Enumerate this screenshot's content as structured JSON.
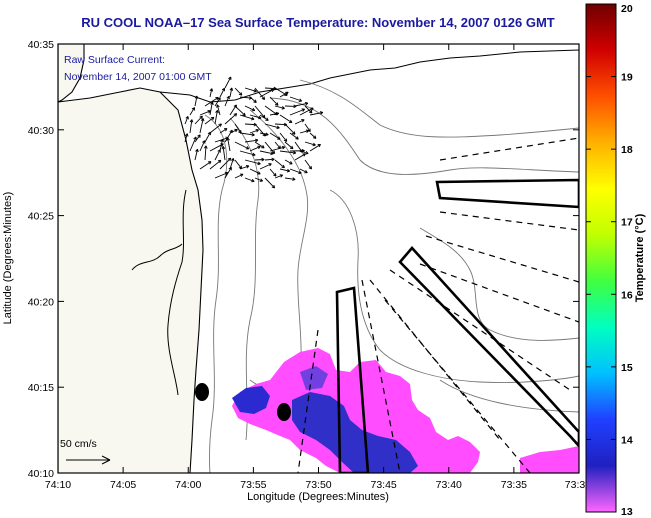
{
  "title": "RU COOL  NOAA–17  Sea Surface Temperature:  November 14, 2007 0126 GMT",
  "subtitle_line1": "Raw Surface Current:",
  "subtitle_line2": "November 14, 2007 01:00 GMT",
  "scale_label": "50 cm/s",
  "x_axis": {
    "label": "Longitude (Degrees:Minutes)",
    "ticks": [
      "74:10",
      "74:05",
      "74:00",
      "73:55",
      "73:50",
      "73:45",
      "73:40",
      "73:35",
      "73:3"
    ]
  },
  "y_axis": {
    "label": "Latitude (Degrees:Minutes)",
    "ticks": [
      "40:35",
      "40:30",
      "40:25",
      "40:20",
      "40:15",
      "40:10"
    ]
  },
  "colorbar": {
    "label": "Temperature (°C)",
    "ticks": [
      "20",
      "19",
      "18",
      "17",
      "16",
      "15",
      "14",
      "13"
    ],
    "min": 13,
    "max": 20,
    "colors": [
      "#ff66ff",
      "#2020c0",
      "#2040ff",
      "#00c0ff",
      "#00ffc0",
      "#40ff40",
      "#c0ff00",
      "#ffff00",
      "#ffb000",
      "#ff5000",
      "#d00000",
      "#700000"
    ]
  },
  "colors": {
    "title": "#1a1aa0",
    "land": "#f8f8f0",
    "sst_warm": "#ff4dff",
    "sst_cool": "#2a2ad0"
  }
}
